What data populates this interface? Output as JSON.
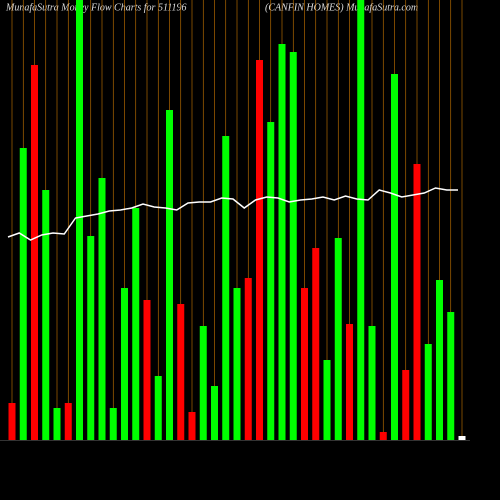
{
  "chart_data": {
    "type": "bar",
    "title": "MunafaSutra  Money Flow  Charts for 511196",
    "subtitle": "(CANFIN  HOMES) MunafaSutra.com",
    "ylim": [
      0,
      110
    ],
    "values": [
      9.25,
      73,
      93.75,
      62.5,
      8,
      9.25,
      110,
      51,
      65.5,
      8,
      38,
      58,
      35,
      16,
      82.5,
      34,
      7,
      28.5,
      13.5,
      76,
      38,
      40.5,
      95,
      79.5,
      99,
      97,
      38,
      48,
      20,
      50.5,
      29,
      110,
      28.5,
      2,
      91.5,
      17.5,
      69,
      24,
      40,
      32,
      1
    ],
    "colors": [
      "#ff0000",
      "#00ff00",
      "#ff0000",
      "#00ff00",
      "#00ff00",
      "#ff0000",
      "#00ff00",
      "#00ff00",
      "#00ff00",
      "#00ff00",
      "#00ff00",
      "#00ff00",
      "#ff0000",
      "#00ff00",
      "#00ff00",
      "#ff0000",
      "#ff0000",
      "#00ff00",
      "#00ff00",
      "#00ff00",
      "#00ff00",
      "#ff0000",
      "#ff0000",
      "#00ff00",
      "#00ff00",
      "#00ff00",
      "#ff0000",
      "#ff0000",
      "#00ff00",
      "#00ff00",
      "#ff0000",
      "#00ff00",
      "#00ff00",
      "#ff0000",
      "#00ff00",
      "#ff0000",
      "#ff0000",
      "#00ff00",
      "#00ff00",
      "#00ff00",
      "#ffffff"
    ],
    "line": {
      "color": "#ffffff",
      "values": [
        50.75,
        51.75,
        50,
        51.25,
        51.75,
        51.5,
        55.5,
        56,
        56.5,
        57.25,
        57.5,
        58,
        59,
        58.25,
        58,
        57.5,
        59.25,
        59.5,
        59.5,
        60.5,
        60.25,
        58,
        60,
        60.75,
        60.5,
        59.5,
        60,
        60.25,
        60.75,
        60,
        61,
        60.25,
        60,
        62.5,
        61.75,
        60.75,
        61.25,
        61.75,
        63,
        62.5,
        62.5
      ]
    },
    "grid_color": "#cc7700"
  }
}
